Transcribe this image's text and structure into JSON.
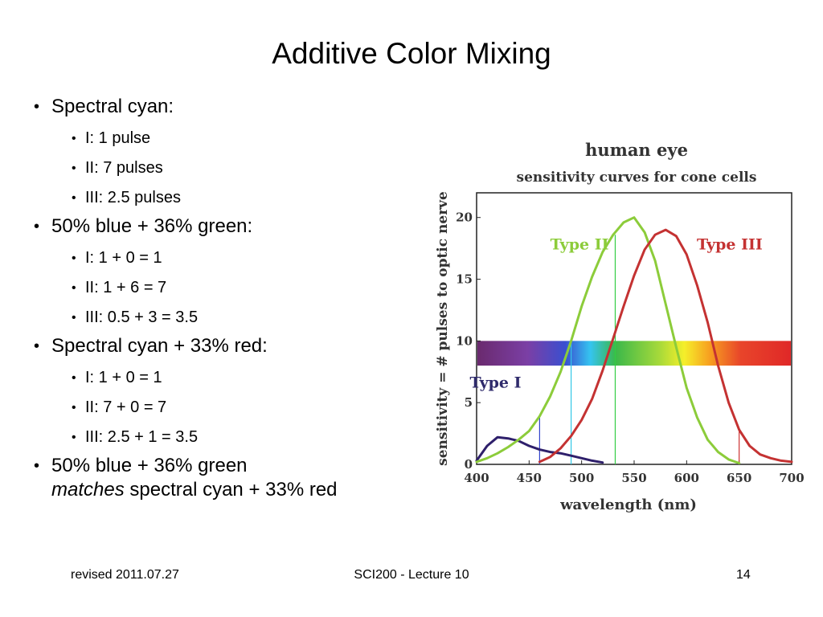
{
  "slide": {
    "title": "Additive Color Mixing",
    "bullets": [
      {
        "text": "Spectral cyan:",
        "sub": [
          "I: 1 pulse",
          "II: 7 pulses",
          "III: 2.5 pulses"
        ]
      },
      {
        "text": "50% blue + 36% green:",
        "sub": [
          "I: 1 + 0 = 1",
          "II: 1 + 6 = 7",
          "III: 0.5 + 3 = 3.5"
        ]
      },
      {
        "text": "Spectral cyan + 33% red:",
        "sub": [
          "I: 1 + 0 = 1",
          "II: 7 + 0 = 7",
          "III: 2.5 + 1 = 3.5"
        ]
      }
    ],
    "last_bullet": {
      "part1": "50% blue + 36% green",
      "em": "matches",
      "part2": "spectral cyan + 33% red"
    }
  },
  "footer": {
    "left": "revised 2011.07.27",
    "center": "SCI200 - Lecture 10",
    "right": "14"
  },
  "chart_data": {
    "type": "line",
    "title": "human eye",
    "subtitle": "sensitivity curves for cone cells",
    "xlabel": "wavelength (nm)",
    "ylabel": "sensitivity = # pulses to optic nerve",
    "xlim": [
      400,
      700
    ],
    "ylim": [
      0,
      22
    ],
    "xticks": [
      "400",
      "450",
      "500",
      "550",
      "600",
      "650",
      "700"
    ],
    "yticks": [
      "0",
      "5",
      "10",
      "15",
      "20"
    ],
    "x": [
      400,
      410,
      420,
      430,
      440,
      450,
      460,
      470,
      480,
      490,
      500,
      510,
      520,
      530,
      540,
      550,
      560,
      570,
      580,
      590,
      600,
      610,
      620,
      630,
      640,
      650,
      660,
      670,
      680,
      690,
      700
    ],
    "series": [
      {
        "name": "Type I",
        "color": "#2e1f6b",
        "values": [
          0.3,
          1.5,
          2.2,
          2.1,
          1.9,
          1.5,
          1.2,
          1.0,
          0.9,
          0.7,
          0.5,
          0.3,
          0.15,
          null,
          null,
          null,
          null,
          null,
          null,
          null,
          null,
          null,
          null,
          null,
          null,
          null,
          null,
          null,
          null,
          null,
          null
        ]
      },
      {
        "name": "Type II",
        "color": "#8ccc3a",
        "values": [
          0.2,
          0.5,
          0.9,
          1.4,
          2.0,
          2.7,
          3.9,
          5.5,
          7.5,
          10.0,
          12.8,
          15.2,
          17.2,
          18.6,
          19.6,
          20.0,
          18.8,
          16.5,
          13.0,
          9.5,
          6.2,
          3.8,
          2.0,
          1.0,
          0.4,
          0.1,
          null,
          null,
          null,
          null,
          null
        ]
      },
      {
        "name": "Type III",
        "color": "#c43232",
        "values": [
          null,
          null,
          null,
          null,
          null,
          null,
          0.2,
          0.6,
          1.3,
          2.3,
          3.6,
          5.3,
          7.6,
          10.2,
          12.8,
          15.3,
          17.4,
          18.6,
          19.0,
          18.5,
          17.0,
          14.5,
          11.5,
          8.0,
          5.0,
          2.8,
          1.5,
          0.8,
          0.5,
          0.3,
          0.2
        ]
      }
    ],
    "markers": [
      {
        "x": 460,
        "color": "#3344cc"
      },
      {
        "x": 490,
        "color": "#33c8e6"
      },
      {
        "x": 532,
        "color": "#33cc44"
      },
      {
        "x": 650,
        "color": "#cc3333"
      }
    ],
    "spectrum_band": {
      "y_range": [
        8,
        10
      ]
    }
  }
}
